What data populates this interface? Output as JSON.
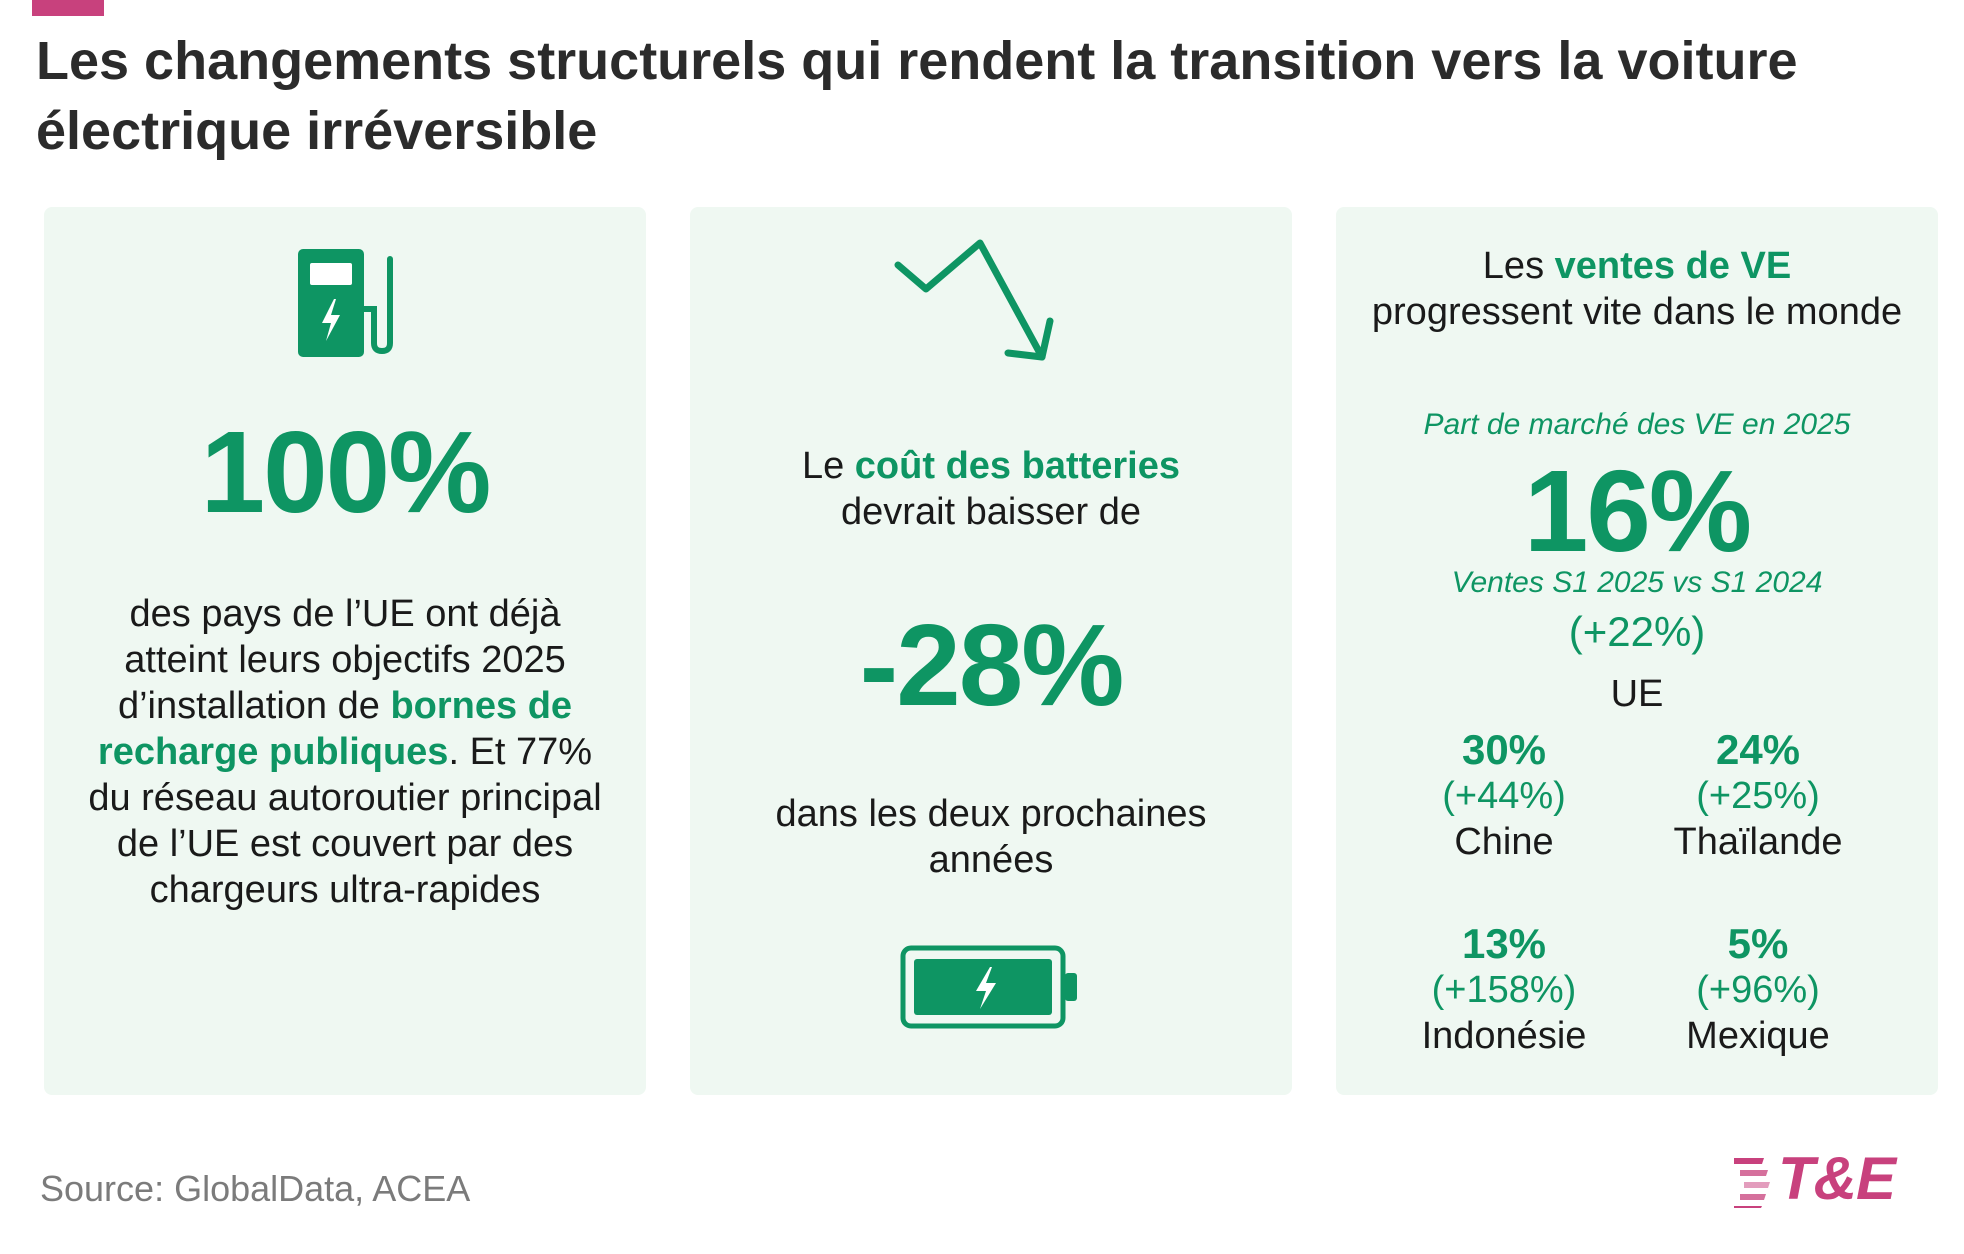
{
  "title": "Les changements structurels qui rendent la transition vers la voiture électrique irréversible",
  "card1": {
    "icon": "ev-charging-pump-icon",
    "big_number": "100%",
    "text_part1": "des pays de l’UE ont déjà atteint leurs objectifs 2025 d’installation de ",
    "text_highlight": "bornes de recharge publiques",
    "text_part2": ". Et 77% du réseau autoroutier principal de l’UE est couvert par des chargeurs ultra-rapides"
  },
  "card2": {
    "icon_top": "downward-trend-arrow-icon",
    "lead_part1": "Le ",
    "lead_highlight": "coût des batteries",
    "lead_part2": " devrait baisser de",
    "big_number": "-28%",
    "tail": "dans les deux prochaines années",
    "icon_bottom": "battery-charging-icon"
  },
  "card3": {
    "lead_part1": "Les ",
    "lead_highlight": "ventes de VE",
    "lead_part2": " progressent vite dans le monde",
    "subtitle1": "Part de marché des VE en 2025",
    "big_number": "16%",
    "subtitle2": "Ventes S1 2025 vs S1 2024",
    "change": "(+22%)",
    "region": "UE",
    "countries": [
      {
        "pct": "30%",
        "change": "(+44%)",
        "name": "Chine"
      },
      {
        "pct": "24%",
        "change": "(+25%)",
        "name": "Thaïlande"
      },
      {
        "pct": "13%",
        "change": "(+158%)",
        "name": "Indonésie"
      },
      {
        "pct": "5%",
        "change": "(+96%)",
        "name": "Mexique"
      }
    ]
  },
  "source": "Source: GlobalData, ACEA",
  "logo_text": "T&E",
  "colors": {
    "accent_green": "#0e9563",
    "card_bg": "#eff8f2",
    "brand_pink": "#c8417d"
  }
}
